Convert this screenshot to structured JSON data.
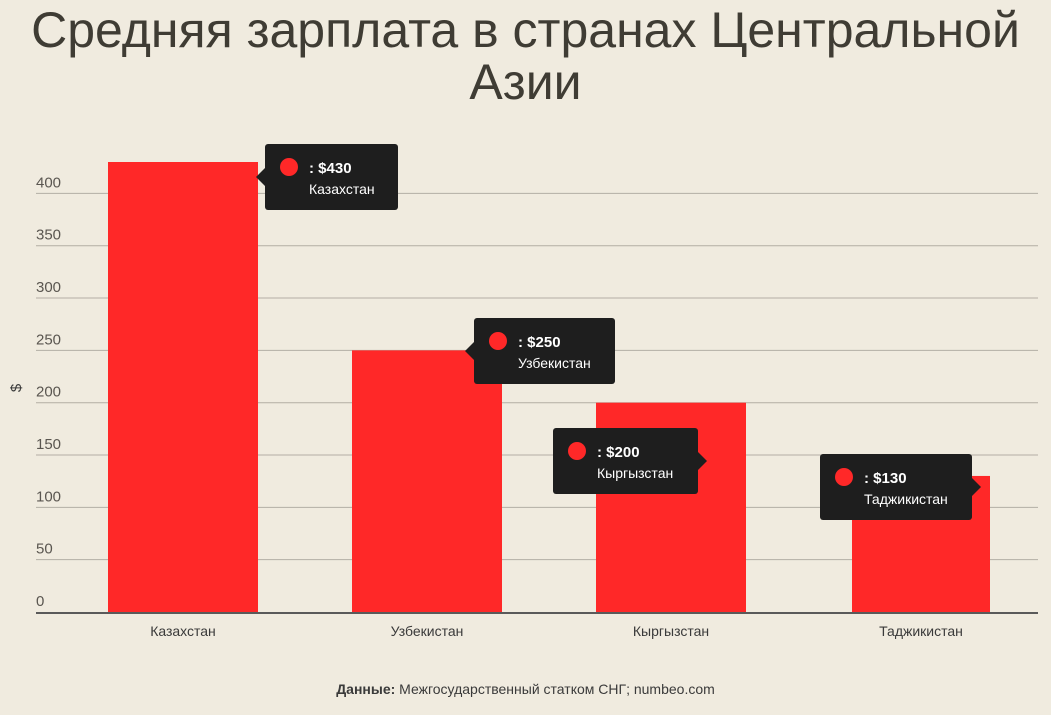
{
  "chart_data": {
    "type": "bar",
    "title": "Средняя зарплата в странах Центральной Азии",
    "ylabel": "$",
    "xlabel": "",
    "ylim": [
      0,
      430
    ],
    "yticks": [
      0,
      50,
      100,
      150,
      200,
      250,
      300,
      350,
      400
    ],
    "grid": true,
    "categories": [
      "Казахстан",
      "Узбекистан",
      "Кыргызстан",
      "Таджикистан"
    ],
    "values": [
      430,
      250,
      200,
      130
    ],
    "bar_color": "#ff2828",
    "tooltips": [
      {
        "value_label": ": $430",
        "category": "Казахстан"
      },
      {
        "value_label": ": $250",
        "category": "Узбекистан"
      },
      {
        "value_label": ": $200",
        "category": "Кыргызстан"
      },
      {
        "value_label": ": $130",
        "category": "Таджикистан"
      }
    ]
  },
  "footer": {
    "source_label": "Данные:",
    "source_text": " Межгосударственный статком СНГ; numbeo.com"
  }
}
